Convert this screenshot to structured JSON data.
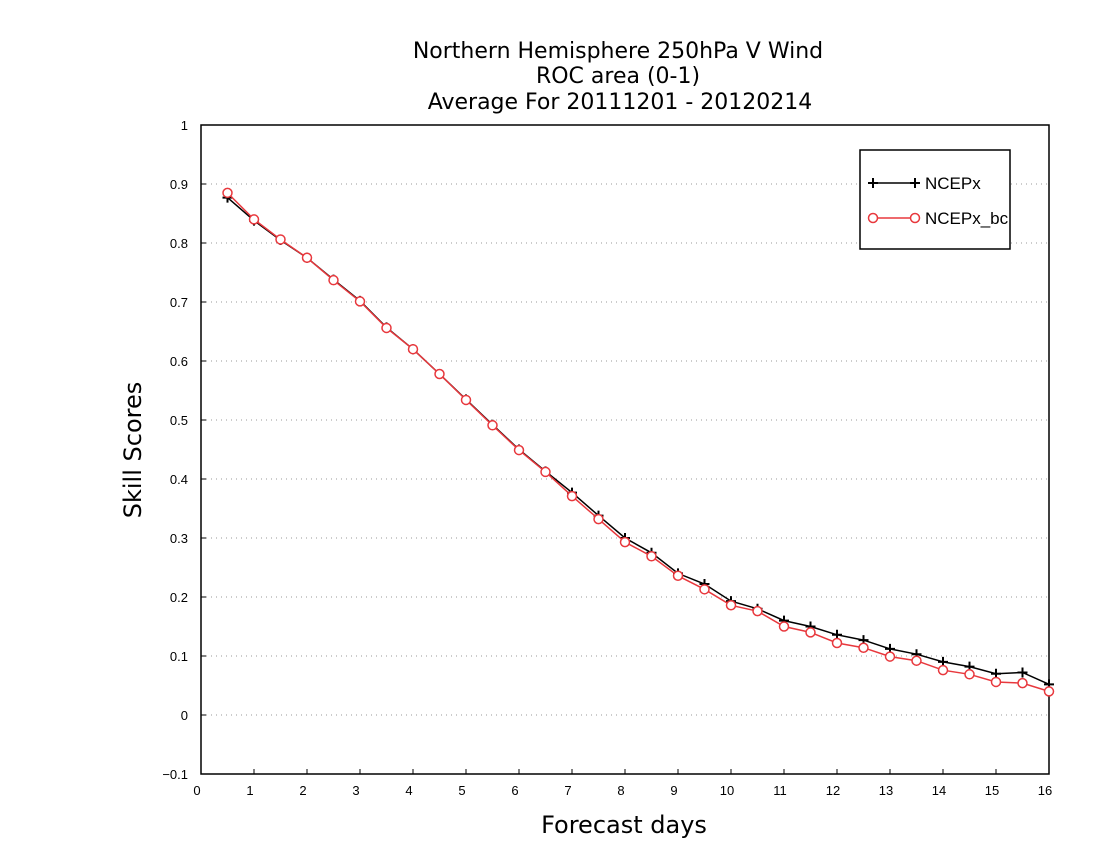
{
  "chart_data": {
    "type": "line",
    "title": [
      "Northern Hemisphere 250hPa V Wind",
      "ROC area (0-1)",
      "Average For 20111201 - 20120214"
    ],
    "xlabel": "Forecast days",
    "ylabel": "Skill Scores",
    "xlim": [
      0,
      16
    ],
    "ylim": [
      -0.1,
      1
    ],
    "xticks": [
      "0",
      "1",
      "2",
      "3",
      "4",
      "5",
      "6",
      "7",
      "8",
      "9",
      "10",
      "11",
      "12",
      "13",
      "14",
      "15",
      "16"
    ],
    "yticks": [
      "−0.1",
      "0",
      "0.1",
      "0.2",
      "0.3",
      "0.4",
      "0.5",
      "0.6",
      "0.7",
      "0.8",
      "0.9",
      "1"
    ],
    "grid": "horizontal-dotted",
    "legend_position": "top-right",
    "x": [
      0.5,
      1.0,
      1.5,
      2.0,
      2.5,
      3.0,
      3.5,
      4.0,
      4.5,
      5.0,
      5.5,
      6.0,
      6.5,
      7.0,
      7.5,
      8.0,
      8.5,
      9.0,
      9.5,
      10.0,
      10.5,
      11.0,
      11.5,
      12.0,
      12.5,
      13.0,
      13.5,
      14.0,
      14.5,
      15.0,
      15.5,
      16.0
    ],
    "series": [
      {
        "name": "NCEPx",
        "color": "#000000",
        "marker": "plus",
        "values": [
          0.877,
          0.838,
          0.805,
          0.775,
          0.738,
          0.702,
          0.657,
          0.62,
          0.578,
          0.535,
          0.492,
          0.45,
          0.413,
          0.377,
          0.338,
          0.3,
          0.275,
          0.24,
          0.222,
          0.193,
          0.18,
          0.16,
          0.15,
          0.136,
          0.127,
          0.112,
          0.103,
          0.09,
          0.082,
          0.07,
          0.072,
          0.052
        ]
      },
      {
        "name": "NCEPx_bc",
        "color": "#e8383d",
        "marker": "circle",
        "values": [
          0.885,
          0.84,
          0.806,
          0.775,
          0.737,
          0.701,
          0.656,
          0.62,
          0.578,
          0.534,
          0.491,
          0.449,
          0.412,
          0.371,
          0.332,
          0.293,
          0.269,
          0.236,
          0.213,
          0.186,
          0.176,
          0.15,
          0.14,
          0.122,
          0.114,
          0.099,
          0.092,
          0.076,
          0.069,
          0.056,
          0.054,
          0.04
        ]
      }
    ]
  }
}
